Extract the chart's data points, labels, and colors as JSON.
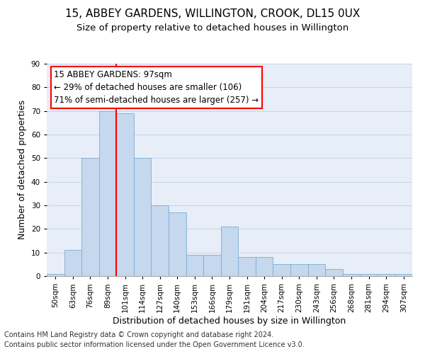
{
  "title1": "15, ABBEY GARDENS, WILLINGTON, CROOK, DL15 0UX",
  "title2": "Size of property relative to detached houses in Willington",
  "xlabel": "Distribution of detached houses by size in Willington",
  "ylabel": "Number of detached properties",
  "footnote1": "Contains HM Land Registry data © Crown copyright and database right 2024.",
  "footnote2": "Contains public sector information licensed under the Open Government Licence v3.0.",
  "categories": [
    "50sqm",
    "63sqm",
    "76sqm",
    "89sqm",
    "101sqm",
    "114sqm",
    "127sqm",
    "140sqm",
    "153sqm",
    "166sqm",
    "179sqm",
    "191sqm",
    "204sqm",
    "217sqm",
    "230sqm",
    "243sqm",
    "256sqm",
    "268sqm",
    "281sqm",
    "294sqm",
    "307sqm"
  ],
  "values": [
    1,
    11,
    50,
    70,
    69,
    50,
    30,
    27,
    9,
    9,
    21,
    8,
    8,
    5,
    5,
    5,
    3,
    1,
    1,
    1,
    1
  ],
  "bar_color": "#c5d8ee",
  "bar_edge_color": "#7aadd4",
  "grid_color": "#c8d4e8",
  "background_color": "#e8eef8",
  "vline_color": "red",
  "ylim": [
    0,
    90
  ],
  "yticks": [
    0,
    10,
    20,
    30,
    40,
    50,
    60,
    70,
    80,
    90
  ],
  "annotation_title": "15 ABBEY GARDENS: 97sqm",
  "annotation_line1": "← 29% of detached houses are smaller (106)",
  "annotation_line2": "71% of semi-detached houses are larger (257) →",
  "annotation_box_color": "white",
  "annotation_box_edge": "red",
  "title1_fontsize": 11,
  "title2_fontsize": 9.5,
  "tick_fontsize": 7.5,
  "ylabel_fontsize": 9,
  "xlabel_fontsize": 9,
  "annotation_fontsize": 8.5,
  "footnote_fontsize": 7
}
